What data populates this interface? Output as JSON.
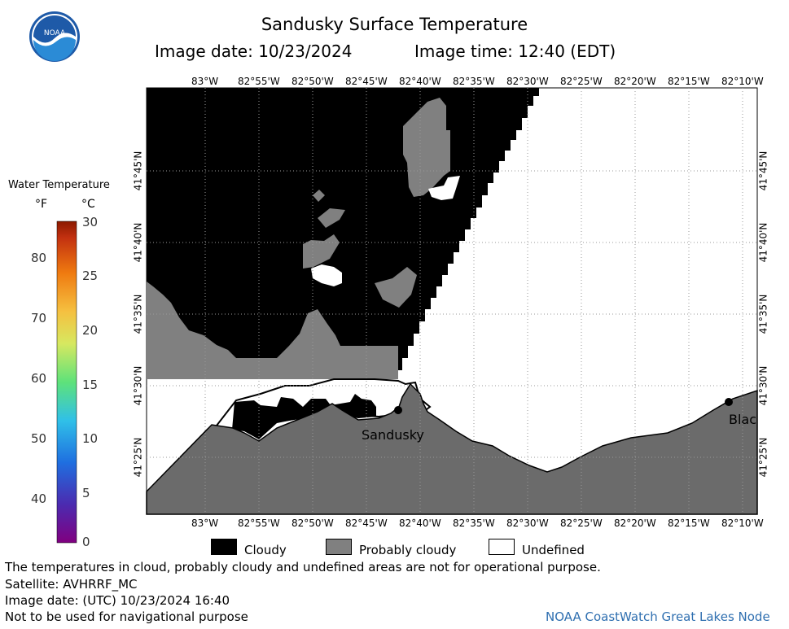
{
  "header": {
    "title": "Sandusky Surface Temperature",
    "image_date_label": "Image date: 10/23/2024",
    "image_time_label": "Image time: 12:40 (EDT)",
    "logo_text": "NOAA"
  },
  "map": {
    "lon_labels": [
      "83°W",
      "82°55'W",
      "82°50'W",
      "82°45'W",
      "82°40'W",
      "82°35'W",
      "82°30'W",
      "82°25'W",
      "82°20'W",
      "82°15'W",
      "82°10'W"
    ],
    "lat_labels": [
      "41°45'N",
      "41°40'N",
      "41°35'N",
      "41°30'N",
      "41°25'N"
    ],
    "places": [
      {
        "name": "Sandusky"
      },
      {
        "name": "Blac"
      }
    ],
    "colors": {
      "land": "#6b6b6b",
      "cloudy": "#000000",
      "probably_cloudy": "#808080",
      "undefined": "#ffffff",
      "grid": "#9a9a9a"
    }
  },
  "colorbar": {
    "title": "Water Temperature",
    "unit_f": "°F",
    "unit_c": "°C",
    "f_ticks": [
      "80",
      "70",
      "60",
      "50",
      "40"
    ],
    "c_ticks": [
      "30",
      "25",
      "20",
      "15",
      "10",
      "5",
      "0"
    ]
  },
  "legend": {
    "cloudy": "Cloudy",
    "probably_cloudy": "Probably cloudy",
    "undefined": "Undefined"
  },
  "footer": {
    "disclaimer": "The temperatures in cloud, probably cloudy and undefined areas are not for operational purpose.",
    "satellite": "Satellite: AVHRRF_MC",
    "utc_date": "Image date: (UTC) 10/23/2024  16:40",
    "nav_warning": "Not to be used for navigational purpose",
    "credit": "NOAA CoastWatch Great Lakes Node"
  }
}
